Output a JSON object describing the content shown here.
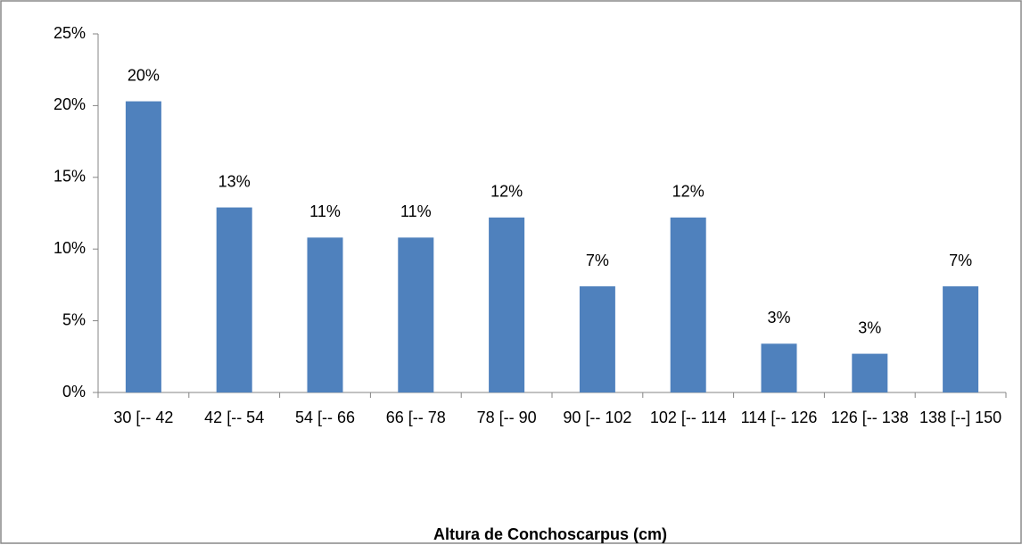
{
  "chart_data": {
    "type": "bar",
    "x_label": "Altura de Conchoscarpus (cm)",
    "categories": [
      "30 [-- 42",
      "42 [-- 54",
      "54 [-- 66",
      "66 [-- 78",
      "78 [-- 90",
      "90 [-- 102",
      "102 [-- 114",
      "114 [-- 126",
      "126 [-- 138",
      "138 [--] 150"
    ],
    "values": [
      20.3,
      12.9,
      10.8,
      10.8,
      12.2,
      7.4,
      12.2,
      3.4,
      2.7,
      7.4
    ],
    "value_labels": [
      "20%",
      "13%",
      "11%",
      "11%",
      "12%",
      "7%",
      "12%",
      "3%",
      "3%",
      "7%"
    ],
    "color": "#4f81bd",
    "ylim": [
      0,
      25
    ],
    "yticks": [
      {
        "value": 0,
        "label": "0%"
      },
      {
        "value": 5,
        "label": "5%"
      },
      {
        "value": 10,
        "label": "10%"
      },
      {
        "value": 15,
        "label": "15%"
      },
      {
        "value": 20,
        "label": "20%"
      },
      {
        "value": 25,
        "label": "25%"
      }
    ]
  }
}
